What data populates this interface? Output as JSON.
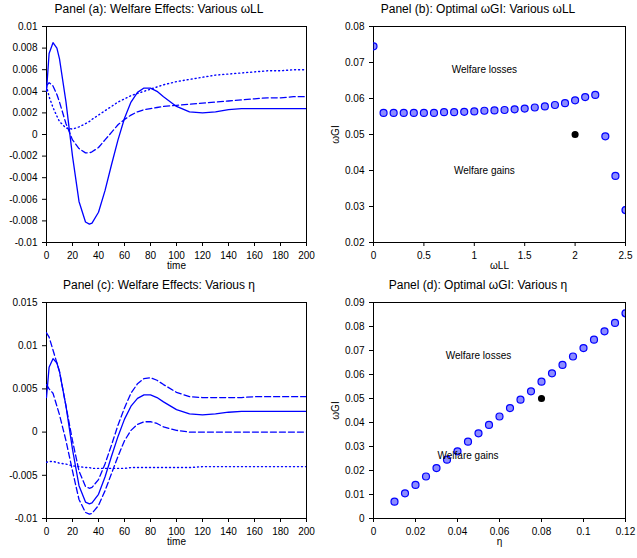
{
  "chart_data": [
    {
      "type": "line",
      "title": "Panel (a): Welfare Effects: Various ωLL",
      "xlabel": "time",
      "xlim": [
        0,
        200
      ],
      "xticks": [
        0,
        20,
        40,
        60,
        80,
        100,
        120,
        140,
        160,
        180,
        200
      ],
      "ylim": [
        -0.01,
        0.01
      ],
      "yticks": [
        -0.01,
        -0.008,
        -0.006,
        -0.004,
        -0.002,
        0,
        0.002,
        0.004,
        0.006,
        0.008,
        0.01
      ],
      "x": [
        0,
        2,
        5,
        8,
        10,
        15,
        20,
        25,
        30,
        33,
        35,
        40,
        45,
        50,
        55,
        60,
        65,
        70,
        75,
        80,
        85,
        90,
        100,
        110,
        120,
        130,
        140,
        150,
        160,
        170,
        180,
        190,
        200
      ],
      "series": [
        {
          "color": "#0000ff",
          "line_style": "solid",
          "values": [
            0.004,
            0.0075,
            0.0085,
            0.008,
            0.007,
            0.003,
            -0.002,
            -0.0062,
            -0.0081,
            -0.0083,
            -0.0082,
            -0.0072,
            -0.0052,
            -0.0028,
            -0.0005,
            0.0015,
            0.003,
            0.0039,
            0.0043,
            0.0043,
            0.004,
            0.0035,
            0.0026,
            0.0021,
            0.002,
            0.0021,
            0.0023,
            0.0024,
            0.0024,
            0.0024,
            0.0024,
            0.0024,
            0.0024
          ]
        },
        {
          "color": "#0000ff",
          "line_style": "dashed",
          "values": [
            0.0045,
            0.0048,
            0.0045,
            0.0037,
            0.003,
            0.001,
            -0.0005,
            -0.0013,
            -0.0017,
            -0.0017,
            -0.0016,
            -0.0012,
            -0.0005,
            0.0002,
            0.0009,
            0.0014,
            0.0018,
            0.0021,
            0.0023,
            0.0024,
            0.0025,
            0.0026,
            0.0027,
            0.0028,
            0.0029,
            0.003,
            0.0031,
            0.0032,
            0.0033,
            0.0034,
            0.0034,
            0.0035,
            0.0035
          ]
        },
        {
          "color": "#0000ff",
          "line_style": "dotted",
          "values": [
            0.0045,
            0.0035,
            0.0025,
            0.0017,
            0.0012,
            0.0006,
            0.0005,
            0.0007,
            0.001,
            0.0012,
            0.0014,
            0.0018,
            0.0022,
            0.0026,
            0.003,
            0.0033,
            0.0036,
            0.0038,
            0.004,
            0.0042,
            0.0044,
            0.0046,
            0.0049,
            0.0051,
            0.0053,
            0.0055,
            0.0056,
            0.0057,
            0.0058,
            0.0059,
            0.0059,
            0.006,
            0.006
          ]
        }
      ]
    },
    {
      "type": "scatter",
      "title": "Panel (b): Optimal ωGI: Various ωLL",
      "xlabel": "ωLL",
      "ylabel": "ωGI",
      "xlim": [
        0,
        2.5
      ],
      "xticks": [
        0,
        0.5,
        1,
        1.5,
        2,
        2.5
      ],
      "ylim": [
        0.02,
        0.08
      ],
      "yticks": [
        0.02,
        0.03,
        0.04,
        0.05,
        0.06,
        0.07,
        0.08
      ],
      "x": [
        0,
        0.1,
        0.2,
        0.3,
        0.4,
        0.5,
        0.6,
        0.7,
        0.8,
        0.9,
        1,
        1.1,
        1.2,
        1.3,
        1.4,
        1.5,
        1.6,
        1.7,
        1.8,
        1.9,
        2,
        2.1,
        2.2,
        2.3,
        2.4,
        2.5
      ],
      "series": [
        {
          "color": "#0000ff",
          "marker": "circle",
          "values": [
            0.0745,
            0.056,
            0.056,
            0.056,
            0.056,
            0.056,
            0.056,
            0.0562,
            0.0562,
            0.0563,
            0.0564,
            0.0566,
            0.0567,
            0.0568,
            0.057,
            0.0572,
            0.0575,
            0.0578,
            0.0582,
            0.0587,
            0.0595,
            0.0604,
            0.061,
            0.0495,
            0.0385,
            0.029
          ]
        }
      ],
      "highlight": {
        "x": 2,
        "y": 0.05,
        "color": "#000000"
      },
      "annotations": [
        {
          "text": "Welfare losses",
          "x": 1.1,
          "y": 0.068
        },
        {
          "text": "Welfare gains",
          "x": 1.1,
          "y": 0.04
        }
      ]
    },
    {
      "type": "line",
      "title": "Panel (c): Welfare Effects: Various η",
      "xlabel": "time",
      "xlim": [
        0,
        200
      ],
      "xticks": [
        0,
        20,
        40,
        60,
        80,
        100,
        120,
        140,
        160,
        180,
        200
      ],
      "ylim": [
        -0.01,
        0.015
      ],
      "yticks": [
        -0.01,
        -0.005,
        0,
        0.005,
        0.01,
        0.015
      ],
      "x": [
        0,
        2,
        5,
        8,
        10,
        15,
        20,
        25,
        30,
        33,
        35,
        40,
        45,
        50,
        55,
        60,
        65,
        70,
        75,
        80,
        85,
        90,
        100,
        110,
        120,
        130,
        140,
        150,
        160,
        170,
        180,
        190,
        200
      ],
      "series": [
        {
          "color": "#0000ff",
          "line_style": "solid",
          "values": [
            0.004,
            0.0075,
            0.0085,
            0.008,
            0.007,
            0.003,
            -0.002,
            -0.0062,
            -0.0081,
            -0.0083,
            -0.0082,
            -0.0072,
            -0.0052,
            -0.0028,
            -0.0005,
            0.0015,
            0.003,
            0.0039,
            0.0043,
            0.0043,
            0.004,
            0.0035,
            0.0026,
            0.0021,
            0.002,
            0.0021,
            0.0023,
            0.0024,
            0.0024,
            0.0024,
            0.0024,
            0.0024,
            0.0024
          ]
        },
        {
          "color": "#0000ff",
          "line_style": "dashed",
          "values": [
            0.0115,
            0.011,
            0.0095,
            0.008,
            0.007,
            0.003,
            -0.001,
            -0.0045,
            -0.0063,
            -0.0065,
            -0.0064,
            -0.0055,
            -0.0037,
            -0.0015,
            0.0008,
            0.0028,
            0.0045,
            0.0056,
            0.0062,
            0.0063,
            0.006,
            0.0055,
            0.0046,
            0.0041,
            0.004,
            0.004,
            0.004,
            0.004,
            0.0041,
            0.0041,
            0.0041,
            0.0041,
            0.0041
          ]
        },
        {
          "color": "#0000ff",
          "line_style": "dashed",
          "values": [
            0.0055,
            0.005,
            0.0045,
            0.003,
            0.002,
            -0.001,
            -0.0045,
            -0.0078,
            -0.0093,
            -0.0095,
            -0.0094,
            -0.0085,
            -0.0068,
            -0.0048,
            -0.0028,
            -0.001,
            0.0002,
            0.0009,
            0.0012,
            0.0012,
            0.001,
            0.0006,
            0.0002,
            0,
            0,
            0,
            0,
            0,
            0,
            0,
            0,
            0,
            0
          ]
        },
        {
          "color": "#0000ff",
          "line_style": "dotted",
          "values": [
            -0.0035,
            -0.0034,
            -0.0034,
            -0.0035,
            -0.0036,
            -0.0037,
            -0.0039,
            -0.004,
            -0.0041,
            -0.0041,
            -0.0042,
            -0.0042,
            -0.0042,
            -0.0042,
            -0.0042,
            -0.0042,
            -0.0041,
            -0.0041,
            -0.0041,
            -0.0041,
            -0.0041,
            -0.0041,
            -0.0041,
            -0.0041,
            -0.004,
            -0.004,
            -0.004,
            -0.004,
            -0.004,
            -0.004,
            -0.004,
            -0.004,
            -0.004
          ]
        }
      ]
    },
    {
      "type": "scatter",
      "title": "Panel (d): Optimal ωGI: Various η",
      "xlabel": "η",
      "ylabel": "ωGI",
      "xlim": [
        0,
        0.12
      ],
      "xticks": [
        0,
        0.02,
        0.04,
        0.06,
        0.08,
        0.1,
        0.12
      ],
      "ylim": [
        0,
        0.09
      ],
      "yticks": [
        0,
        0.01,
        0.02,
        0.03,
        0.04,
        0.05,
        0.06,
        0.07,
        0.08,
        0.09
      ],
      "x": [
        0.01,
        0.015,
        0.02,
        0.025,
        0.03,
        0.035,
        0.04,
        0.045,
        0.05,
        0.055,
        0.06,
        0.065,
        0.07,
        0.075,
        0.08,
        0.085,
        0.09,
        0.095,
        0.1,
        0.105,
        0.11,
        0.115,
        0.12
      ],
      "series": [
        {
          "color": "#0000ff",
          "marker": "circle",
          "values": [
            0.007,
            0.0105,
            0.014,
            0.0175,
            0.021,
            0.0245,
            0.028,
            0.032,
            0.0355,
            0.039,
            0.0425,
            0.046,
            0.0495,
            0.053,
            0.057,
            0.0605,
            0.064,
            0.0675,
            0.071,
            0.0745,
            0.078,
            0.0815,
            0.0855
          ]
        }
      ],
      "highlight": {
        "x": 0.08,
        "y": 0.05,
        "color": "#000000"
      },
      "annotations": [
        {
          "text": "Welfare losses",
          "x": 0.05,
          "y": 0.068
        },
        {
          "text": "Welfare gains",
          "x": 0.045,
          "y": 0.026
        }
      ]
    }
  ]
}
